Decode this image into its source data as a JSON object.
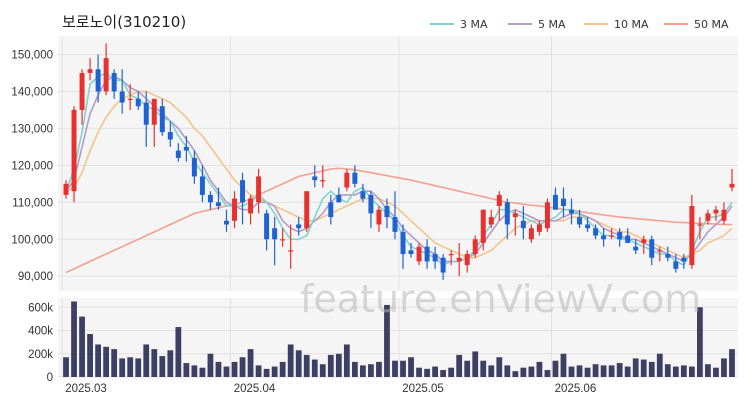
{
  "chart_data": {
    "type": "candlestick",
    "title": "보로노이(310210)",
    "watermark": "feature.enViewV.com",
    "x_ticks": [
      {
        "label": "2025.03",
        "index": 0
      },
      {
        "label": "2025.04",
        "index": 21
      },
      {
        "label": "2025.05",
        "index": 42
      },
      {
        "label": "2025.06",
        "index": 61
      }
    ],
    "price_axis": {
      "ylim": [
        86000,
        155000
      ],
      "ticks": [
        90000,
        100000,
        110000,
        120000,
        130000,
        140000,
        150000
      ],
      "tick_labels": [
        "90,000",
        "100,000",
        "110,000",
        "120,000",
        "130,000",
        "140,000",
        "150,000"
      ]
    },
    "volume_axis": {
      "ylim": [
        0,
        680000
      ],
      "ticks": [
        0,
        200000,
        400000,
        600000
      ],
      "tick_labels": [
        "0",
        "200k",
        "400k",
        "600k"
      ]
    },
    "legend": [
      {
        "name": "3 MA",
        "color": "#7fd3cf"
      },
      {
        "name": "5 MA",
        "color": "#b59ac8"
      },
      {
        "name": "10 MA",
        "color": "#f3c48a"
      },
      {
        "name": "50 MA",
        "color": "#f4a090"
      }
    ],
    "colors": {
      "up": "#e8312f",
      "down": "#1f63d3",
      "volume": "#3e3f63",
      "plot_bg": "#f5f5f5"
    },
    "ohlc": [
      [
        112000,
        116000,
        111000,
        115000
      ],
      [
        113000,
        136000,
        110000,
        135000
      ],
      [
        135000,
        146000,
        131000,
        145000
      ],
      [
        145000,
        149000,
        143000,
        146000
      ],
      [
        146000,
        150000,
        137000,
        140000
      ],
      [
        140000,
        153000,
        139000,
        149000
      ],
      [
        145000,
        146000,
        138000,
        140000
      ],
      [
        140000,
        146000,
        134000,
        137000
      ],
      [
        138000,
        142000,
        135000,
        138000
      ],
      [
        138000,
        140000,
        135000,
        136000
      ],
      [
        137000,
        140000,
        125000,
        131000
      ],
      [
        131000,
        138000,
        125000,
        138000
      ],
      [
        136000,
        138000,
        128000,
        129000
      ],
      [
        129000,
        132000,
        125000,
        127000
      ],
      [
        124000,
        126000,
        121000,
        122000
      ],
      [
        125000,
        128000,
        121000,
        124000
      ],
      [
        122000,
        124000,
        115000,
        117000
      ],
      [
        117000,
        120000,
        110000,
        112000
      ],
      [
        112000,
        113000,
        108000,
        110000
      ],
      [
        110000,
        114000,
        108000,
        109000
      ],
      [
        105000,
        108000,
        102000,
        104000
      ],
      [
        105000,
        113000,
        103000,
        111000
      ],
      [
        116000,
        118000,
        104000,
        110000
      ],
      [
        107000,
        112000,
        104000,
        111000
      ],
      [
        110000,
        119000,
        107000,
        117000
      ],
      [
        107000,
        108000,
        97000,
        100000
      ],
      [
        103000,
        106000,
        93000,
        100000
      ],
      [
        100000,
        103000,
        98000,
        100000
      ],
      [
        97000,
        104000,
        92000,
        97000
      ],
      [
        104000,
        106000,
        101000,
        103000
      ],
      [
        103000,
        113000,
        102000,
        113000
      ],
      [
        117000,
        120000,
        114000,
        116000
      ],
      [
        116000,
        120000,
        114000,
        116000
      ],
      [
        110000,
        112000,
        104000,
        106000
      ],
      [
        112000,
        114000,
        110000,
        110000
      ],
      [
        114000,
        119000,
        113000,
        118000
      ],
      [
        118000,
        120000,
        114000,
        115000
      ],
      [
        113000,
        115000,
        110000,
        111000
      ],
      [
        112000,
        113000,
        103000,
        107000
      ],
      [
        104000,
        109000,
        102000,
        108000
      ],
      [
        109000,
        111000,
        103000,
        106000
      ],
      [
        106000,
        113000,
        100000,
        102000
      ],
      [
        102000,
        104000,
        92000,
        96000
      ],
      [
        97000,
        99000,
        95000,
        96000
      ],
      [
        94000,
        99000,
        93000,
        98000
      ],
      [
        98000,
        100000,
        92000,
        94000
      ],
      [
        96000,
        98000,
        92000,
        94000
      ],
      [
        95000,
        96000,
        89000,
        91000
      ],
      [
        96000,
        97000,
        93000,
        96000
      ],
      [
        94000,
        99000,
        90000,
        95000
      ],
      [
        93000,
        97000,
        91000,
        96000
      ],
      [
        96000,
        101000,
        95000,
        100000
      ],
      [
        99000,
        108000,
        97000,
        108000
      ],
      [
        104000,
        108000,
        103000,
        106000
      ],
      [
        109000,
        113000,
        105000,
        112000
      ],
      [
        110000,
        111000,
        100000,
        104000
      ],
      [
        106000,
        108000,
        101000,
        107000
      ],
      [
        105000,
        109000,
        100000,
        103000
      ],
      [
        100000,
        104000,
        99000,
        103000
      ],
      [
        102000,
        105000,
        101000,
        104000
      ],
      [
        103000,
        111000,
        102000,
        110000
      ],
      [
        112000,
        114000,
        108000,
        108000
      ],
      [
        111000,
        114000,
        106000,
        109000
      ],
      [
        108000,
        111000,
        104000,
        107000
      ],
      [
        106000,
        108000,
        103000,
        104000
      ],
      [
        104000,
        106000,
        102000,
        103000
      ],
      [
        103000,
        104000,
        100000,
        101000
      ],
      [
        101000,
        103000,
        98000,
        100000
      ],
      [
        101000,
        103000,
        100000,
        101000
      ],
      [
        102000,
        103000,
        98000,
        100000
      ],
      [
        101000,
        103000,
        99000,
        99000
      ],
      [
        98000,
        100000,
        96000,
        97000
      ],
      [
        99000,
        101000,
        96000,
        100000
      ],
      [
        100000,
        101000,
        93000,
        95000
      ],
      [
        97000,
        98000,
        94000,
        97000
      ],
      [
        96000,
        98000,
        94000,
        95000
      ],
      [
        94000,
        96000,
        91000,
        92000
      ],
      [
        95000,
        96000,
        92000,
        94000
      ],
      [
        93000,
        112000,
        92000,
        109000
      ],
      [
        104000,
        106000,
        100000,
        104000
      ],
      [
        105000,
        108000,
        104000,
        107000
      ],
      [
        107000,
        109000,
        105000,
        108000
      ],
      [
        105000,
        110000,
        104000,
        108000
      ],
      [
        114000,
        119000,
        113000,
        115000
      ]
    ],
    "volume": [
      170000,
      650000,
      520000,
      370000,
      280000,
      260000,
      240000,
      160000,
      170000,
      160000,
      280000,
      240000,
      180000,
      230000,
      430000,
      120000,
      100000,
      80000,
      200000,
      130000,
      90000,
      130000,
      170000,
      240000,
      100000,
      70000,
      90000,
      130000,
      280000,
      230000,
      190000,
      150000,
      110000,
      190000,
      200000,
      280000,
      130000,
      100000,
      110000,
      130000,
      620000,
      140000,
      140000,
      170000,
      80000,
      70000,
      90000,
      60000,
      80000,
      190000,
      140000,
      220000,
      140000,
      100000,
      170000,
      100000,
      50000,
      80000,
      90000,
      130000,
      60000,
      140000,
      200000,
      90000,
      100000,
      80000,
      110000,
      100000,
      100000,
      120000,
      90000,
      160000,
      150000,
      130000,
      200000,
      110000,
      90000,
      100000,
      90000,
      600000,
      110000,
      80000,
      160000,
      240000
    ],
    "ma": {
      "3": [
        113000,
        119000,
        129000,
        142000,
        144000,
        145000,
        143000,
        143000,
        139000,
        138000,
        136000,
        135000,
        133000,
        132000,
        128000,
        125000,
        121000,
        118000,
        115000,
        112000,
        109000,
        109000,
        109000,
        110000,
        112000,
        110000,
        107000,
        103000,
        100000,
        100000,
        101000,
        106000,
        111000,
        113000,
        111000,
        110000,
        113000,
        114000,
        111000,
        109000,
        107000,
        105000,
        101000,
        98000,
        97000,
        96000,
        95000,
        93000,
        94000,
        94000,
        95000,
        97000,
        101000,
        104000,
        108000,
        108000,
        107000,
        106000,
        105000,
        104000,
        105000,
        106000,
        108000,
        108000,
        107000,
        105000,
        103000,
        101000,
        101000,
        100000,
        100000,
        99000,
        98000,
        97000,
        96000,
        96000,
        94000,
        93000,
        97000,
        102000,
        106000,
        106000,
        107000,
        110000
      ],
      "5": [
        113000,
        116000,
        125000,
        134000,
        139000,
        143000,
        144000,
        143000,
        141000,
        140000,
        138000,
        136000,
        134000,
        132000,
        130000,
        127000,
        124000,
        120000,
        116000,
        113000,
        110000,
        109000,
        108000,
        108000,
        110000,
        110000,
        109000,
        105000,
        103000,
        102000,
        103000,
        105000,
        107000,
        110000,
        112000,
        112000,
        112000,
        113000,
        113000,
        111000,
        108000,
        106000,
        103000,
        101000,
        99000,
        97000,
        96000,
        94000,
        94000,
        94000,
        95000,
        96000,
        99000,
        102000,
        105000,
        107000,
        108000,
        107000,
        106000,
        105000,
        105000,
        105000,
        106000,
        107000,
        107000,
        106000,
        105000,
        103000,
        102000,
        101000,
        100000,
        100000,
        99000,
        98000,
        97000,
        96000,
        95000,
        94000,
        96000,
        99000,
        102000,
        104000,
        106000,
        109000
      ],
      "10": [
        113000,
        114000,
        118000,
        124000,
        129000,
        133000,
        136000,
        138000,
        139000,
        140000,
        140000,
        139000,
        138000,
        137000,
        135000,
        133000,
        130000,
        128000,
        125000,
        122000,
        119000,
        116000,
        114000,
        112000,
        111000,
        110000,
        109000,
        108000,
        107000,
        106000,
        105000,
        105000,
        106000,
        107000,
        108000,
        109000,
        110000,
        111000,
        111000,
        111000,
        110000,
        109000,
        107000,
        105000,
        103000,
        101000,
        99000,
        98000,
        97000,
        96000,
        95000,
        95000,
        96000,
        97000,
        99000,
        101000,
        103000,
        104000,
        105000,
        105000,
        105000,
        105000,
        105000,
        106000,
        106000,
        106000,
        105000,
        104000,
        103000,
        102000,
        102000,
        101000,
        100000,
        99000,
        98000,
        97000,
        96000,
        95000,
        96000,
        97000,
        99000,
        100000,
        101000,
        103000
      ],
      "50": [
        91000,
        92000,
        93000,
        94000,
        95000,
        96000,
        97000,
        98000,
        99000,
        100000,
        101000,
        102000,
        103000,
        104000,
        105000,
        106000,
        107000,
        107500,
        108000,
        108500,
        109000,
        109500,
        110000,
        111000,
        112000,
        113000,
        114000,
        115000,
        116000,
        117000,
        117500,
        118000,
        118500,
        119000,
        119200,
        119000,
        118800,
        118400,
        118000,
        117600,
        117200,
        116800,
        116400,
        116000,
        115500,
        115000,
        114500,
        114000,
        113500,
        113000,
        112500,
        112000,
        111500,
        111000,
        110500,
        110000,
        109800,
        109500,
        109200,
        109000,
        108700,
        108400,
        108100,
        107800,
        107500,
        107200,
        106900,
        106600,
        106300,
        106000,
        105800,
        105600,
        105400,
        105200,
        105000,
        104800,
        104600,
        104500,
        104400,
        104300,
        104200,
        104100,
        104000,
        104000
      ]
    }
  }
}
